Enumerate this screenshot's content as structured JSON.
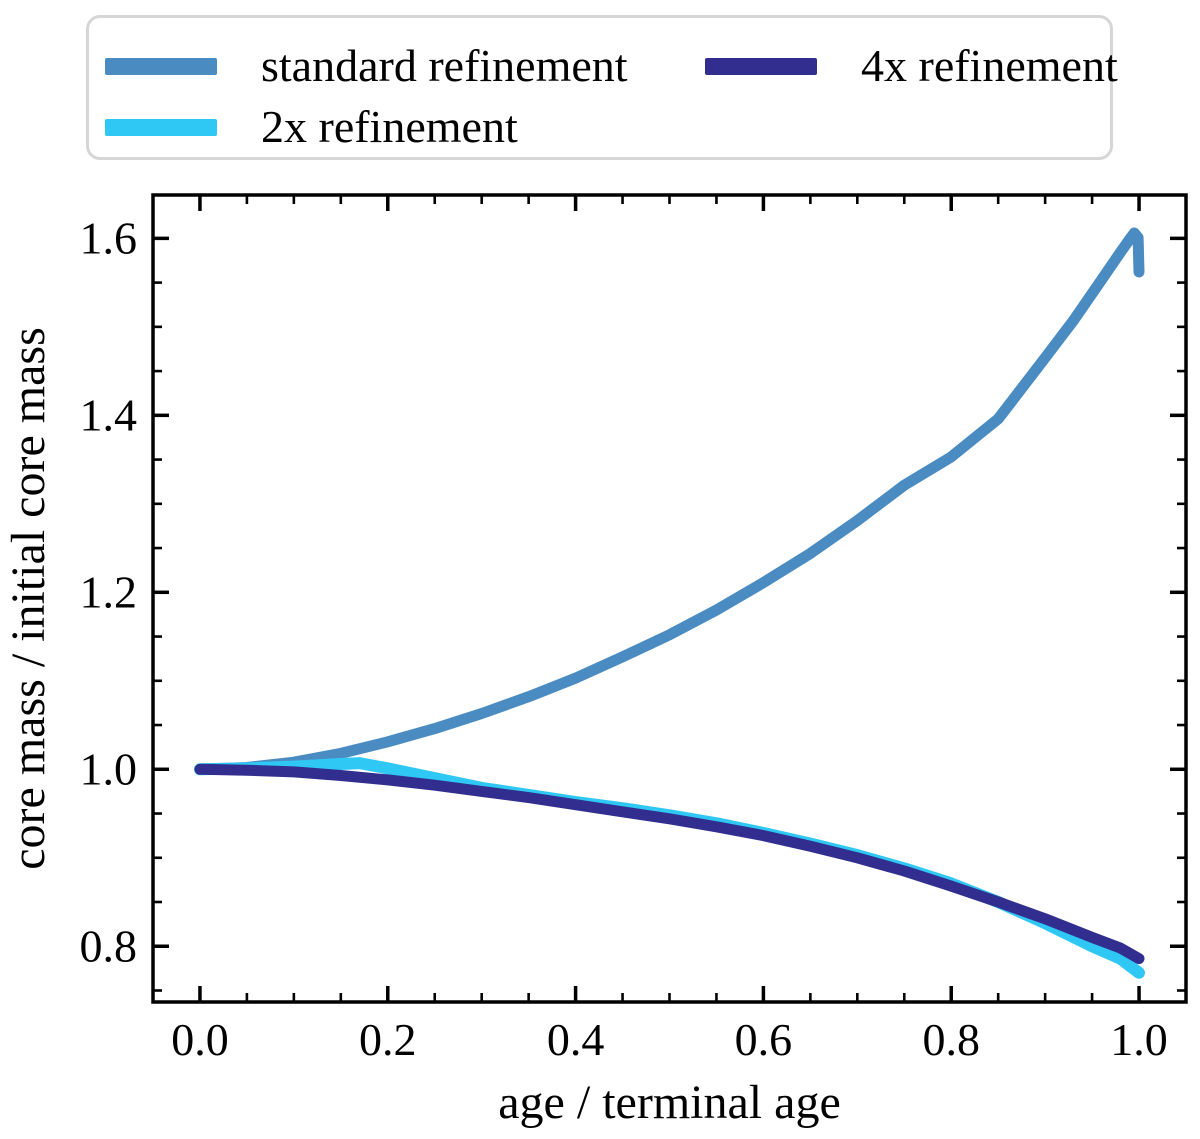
{
  "figure": {
    "background": "#ffffff",
    "axis_color": "#000000",
    "legend_border_color": "#d6d6d6"
  },
  "chart_data": {
    "type": "line",
    "title": "",
    "xlabel": "age / terminal age",
    "ylabel": "core mass / initial core mass",
    "xlim": [
      -0.05,
      1.05
    ],
    "ylim": [
      0.737,
      1.649
    ],
    "x_major_ticks": [
      0.0,
      0.2,
      0.4,
      0.6,
      0.8,
      1.0
    ],
    "x_tick_labels": [
      "0.0",
      "0.2",
      "0.4",
      "0.6",
      "0.8",
      "1.0"
    ],
    "y_major_ticks": [
      0.8,
      1.0,
      1.2,
      1.4,
      1.6
    ],
    "y_tick_labels": [
      "0.8",
      "1.0",
      "1.2",
      "1.4",
      "1.6"
    ],
    "minor_tick_step": 0.05,
    "grid": false,
    "tick_direction": "in",
    "legend_position": "top, 2 columns",
    "legend_order": [
      "standard refinement",
      "4x refinement",
      "2x refinement"
    ],
    "series": [
      {
        "name": "standard refinement",
        "color": "#4a8cc2",
        "linewidth": 11,
        "points": [
          [
            0.0,
            1.0
          ],
          [
            0.05,
            1.002
          ],
          [
            0.1,
            1.008
          ],
          [
            0.15,
            1.018
          ],
          [
            0.2,
            1.031
          ],
          [
            0.25,
            1.046
          ],
          [
            0.3,
            1.063
          ],
          [
            0.35,
            1.082
          ],
          [
            0.4,
            1.103
          ],
          [
            0.45,
            1.127
          ],
          [
            0.5,
            1.152
          ],
          [
            0.55,
            1.18
          ],
          [
            0.6,
            1.211
          ],
          [
            0.65,
            1.244
          ],
          [
            0.7,
            1.281
          ],
          [
            0.75,
            1.321
          ],
          [
            0.8,
            1.353
          ],
          [
            0.85,
            1.396
          ],
          [
            0.9,
            1.465
          ],
          [
            0.93,
            1.507
          ],
          [
            0.96,
            1.553
          ],
          [
            0.98,
            1.584
          ],
          [
            0.99,
            1.599
          ],
          [
            0.995,
            1.606
          ],
          [
            0.999,
            1.601
          ],
          [
            1.0,
            1.562
          ]
        ]
      },
      {
        "name": "2x refinement",
        "color": "#2fc7f3",
        "linewidth": 12,
        "points": [
          [
            0.0,
            1.0
          ],
          [
            0.05,
            1.001
          ],
          [
            0.1,
            1.003
          ],
          [
            0.15,
            1.006
          ],
          [
            0.17,
            1.007
          ],
          [
            0.2,
            1.001
          ],
          [
            0.25,
            0.99
          ],
          [
            0.3,
            0.979
          ],
          [
            0.35,
            0.971
          ],
          [
            0.4,
            0.963
          ],
          [
            0.45,
            0.956
          ],
          [
            0.5,
            0.948
          ],
          [
            0.55,
            0.939
          ],
          [
            0.6,
            0.928
          ],
          [
            0.65,
            0.916
          ],
          [
            0.7,
            0.903
          ],
          [
            0.75,
            0.888
          ],
          [
            0.8,
            0.871
          ],
          [
            0.85,
            0.85
          ],
          [
            0.9,
            0.826
          ],
          [
            0.95,
            0.8
          ],
          [
            0.98,
            0.786
          ],
          [
            1.0,
            0.77
          ]
        ]
      },
      {
        "name": "4x refinement",
        "color": "#312e8f",
        "linewidth": 11,
        "points": [
          [
            0.0,
            1.0
          ],
          [
            0.05,
            0.999
          ],
          [
            0.1,
            0.997
          ],
          [
            0.15,
            0.993
          ],
          [
            0.2,
            0.988
          ],
          [
            0.25,
            0.982
          ],
          [
            0.3,
            0.975
          ],
          [
            0.35,
            0.968
          ],
          [
            0.4,
            0.96
          ],
          [
            0.45,
            0.952
          ],
          [
            0.5,
            0.944
          ],
          [
            0.55,
            0.935
          ],
          [
            0.6,
            0.925
          ],
          [
            0.65,
            0.913
          ],
          [
            0.7,
            0.9
          ],
          [
            0.75,
            0.885
          ],
          [
            0.8,
            0.868
          ],
          [
            0.85,
            0.85
          ],
          [
            0.9,
            0.831
          ],
          [
            0.95,
            0.81
          ],
          [
            0.98,
            0.798
          ],
          [
            1.0,
            0.786
          ]
        ]
      }
    ]
  }
}
